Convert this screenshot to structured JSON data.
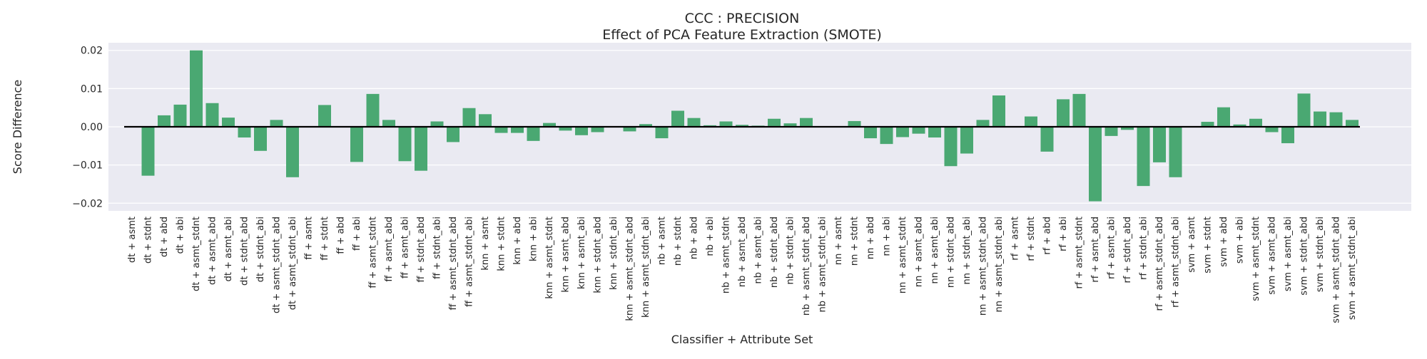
{
  "chart_data": {
    "type": "bar",
    "title": "CCC : PRECISION",
    "subtitle": "Effect of PCA Feature Extraction (SMOTE)",
    "xlabel": "Classifier + Attribute Set",
    "ylabel": "Score Difference",
    "ylim": [
      -0.022,
      0.022
    ],
    "yticks": [
      -0.02,
      -0.01,
      0.0,
      0.01,
      0.02
    ],
    "ytick_labels": [
      "−0.02",
      "−0.01",
      "0.00",
      "0.01",
      "0.02"
    ],
    "grid": true,
    "legend": "none",
    "bar_color": "#4aa872",
    "background_color": "#eaeaf2",
    "zero_line_color": "#000000",
    "categories": [
      "dt + asmt",
      "dt + stdnt",
      "dt + abd",
      "dt + abi",
      "dt + asmt_stdnt",
      "dt + asmt_abd",
      "dt + asmt_abi",
      "dt + stdnt_abd",
      "dt + stdnt_abi",
      "dt + asmt_stdnt_abd",
      "dt + asmt_stdnt_abi",
      "ff + asmt",
      "ff + stdnt",
      "ff + abd",
      "ff + abi",
      "ff + asmt_stdnt",
      "ff + asmt_abd",
      "ff + asmt_abi",
      "ff + stdnt_abd",
      "ff + stdnt_abi",
      "ff + asmt_stdnt_abd",
      "ff + asmt_stdnt_abi",
      "knn + asmt",
      "knn + stdnt",
      "knn + abd",
      "knn + abi",
      "knn + asmt_stdnt",
      "knn + asmt_abd",
      "knn + asmt_abi",
      "knn + stdnt_abd",
      "knn + stdnt_abi",
      "knn + asmt_stdnt_abd",
      "knn + asmt_stdnt_abi",
      "nb + asmt",
      "nb + stdnt",
      "nb + abd",
      "nb + abi",
      "nb + asmt_stdnt",
      "nb + asmt_abd",
      "nb + asmt_abi",
      "nb + stdnt_abd",
      "nb + stdnt_abi",
      "nb + asmt_stdnt_abd",
      "nb + asmt_stdnt_abi",
      "nn + asmt",
      "nn + stdnt",
      "nn + abd",
      "nn + abi",
      "nn + asmt_stdnt",
      "nn + asmt_abd",
      "nn + asmt_abi",
      "nn + stdnt_abd",
      "nn + stdnt_abi",
      "nn + asmt_stdnt_abd",
      "nn + asmt_stdnt_abi",
      "rf + asmt",
      "rf + stdnt",
      "rf + abd",
      "rf + abi",
      "rf + asmt_stdnt",
      "rf + asmt_abd",
      "rf + asmt_abi",
      "rf + stdnt_abd",
      "rf + stdnt_abi",
      "rf + asmt_stdnt_abd",
      "rf + asmt_stdnt_abi",
      "svm + asmt",
      "svm + stdnt",
      "svm + abd",
      "svm + abi",
      "svm + asmt_stdnt",
      "svm + asmt_abd",
      "svm + asmt_abi",
      "svm + stdnt_abd",
      "svm + stdnt_abi",
      "svm + asmt_stdnt_abd",
      "svm + asmt_stdnt_abi"
    ],
    "values": [
      0.0,
      -0.0128,
      0.003,
      0.0058,
      0.02,
      0.0062,
      0.0024,
      -0.0028,
      -0.0063,
      0.0018,
      -0.0132,
      0.0,
      0.0057,
      0.0,
      -0.0092,
      0.0086,
      0.0018,
      -0.009,
      -0.0115,
      0.0014,
      -0.004,
      0.0049,
      0.0033,
      -0.0016,
      -0.0016,
      -0.0037,
      0.001,
      -0.001,
      -0.0022,
      -0.0014,
      0.0,
      -0.0012,
      0.0007,
      -0.003,
      0.0042,
      0.0023,
      0.0004,
      0.0014,
      0.0005,
      0.0003,
      0.0021,
      0.0009,
      0.0023,
      0.0,
      0.0,
      0.0015,
      -0.003,
      -0.0045,
      -0.0027,
      -0.0018,
      -0.0028,
      -0.0103,
      -0.007,
      0.0018,
      0.0082,
      0.0,
      0.0027,
      -0.0065,
      0.0072,
      0.0086,
      -0.0195,
      -0.0024,
      -0.0008,
      -0.0155,
      -0.0093,
      -0.0132,
      0.0,
      0.0013,
      0.0051,
      0.0006,
      0.0021,
      -0.0014,
      -0.0043,
      0.0087,
      0.004,
      0.0038,
      0.0018
    ]
  }
}
